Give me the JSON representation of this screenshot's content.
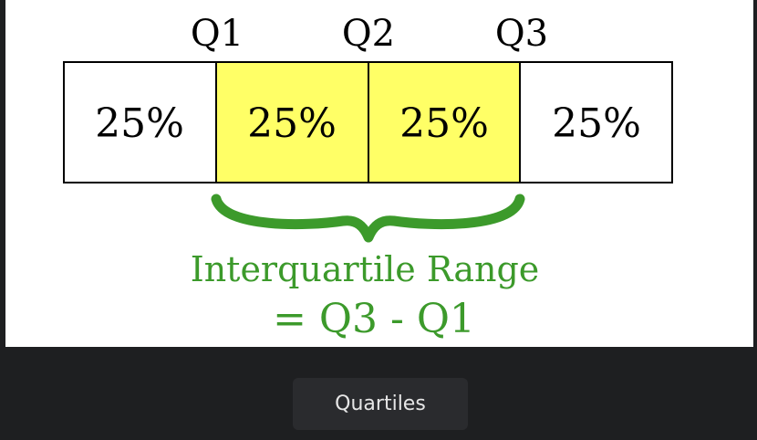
{
  "diagram": {
    "quartile_labels": [
      "Q1",
      "Q2",
      "Q3"
    ],
    "segments": [
      {
        "label": "25%",
        "highlighted": false
      },
      {
        "label": "25%",
        "highlighted": true
      },
      {
        "label": "25%",
        "highlighted": true
      },
      {
        "label": "25%",
        "highlighted": false
      }
    ],
    "caption_line1": "Interquartile Range",
    "caption_line2": "= Q3 - Q1",
    "colors": {
      "highlight": "#ffff66",
      "plain": "#ffffff",
      "border": "#000000",
      "brace": "#3c9a2b"
    }
  },
  "caption_button": {
    "label": "Quartiles"
  }
}
